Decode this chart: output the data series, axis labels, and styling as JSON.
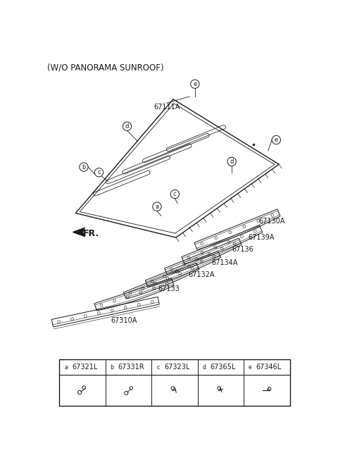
{
  "title_top": "(W/O PANORAMA SUNROOF)",
  "bg_color": "#ffffff",
  "line_color": "#1a1a1a",
  "legend_items": [
    {
      "letter": "a",
      "part": "67321L"
    },
    {
      "letter": "b",
      "part": "67331R"
    },
    {
      "letter": "c",
      "part": "67323L"
    },
    {
      "letter": "d",
      "part": "67365L"
    },
    {
      "letter": "e",
      "part": "67346L"
    }
  ],
  "font_size_title": 8.5,
  "font_size_parts": 7,
  "font_size_legend_part": 7,
  "font_size_circle": 5.5
}
